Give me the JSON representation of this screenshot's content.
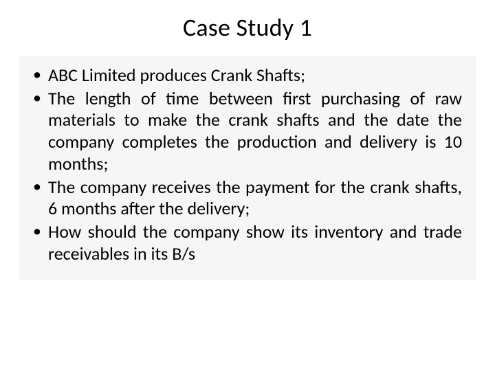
{
  "slide": {
    "title": "Case Study 1",
    "bullets": [
      {
        "text": "ABC Limited produces Crank Shafts;",
        "justify": false
      },
      {
        "text": "The length of time between first purchasing of raw materials to make the crank shafts and the date the company completes the production and delivery is 10 months;",
        "justify": true
      },
      {
        "text": "The company receives the payment for the crank shafts, 6 months after the delivery;",
        "justify": true
      },
      {
        "text": "How should the company show its inventory and trade receivables in its B/s",
        "justify": true
      }
    ],
    "colors": {
      "background": "#ffffff",
      "content_background": "#f6f6f6",
      "text": "#000000",
      "bullet": "#000000"
    },
    "typography": {
      "title_fontsize": 36,
      "body_fontsize": 26,
      "font_family": "Calibri"
    }
  }
}
